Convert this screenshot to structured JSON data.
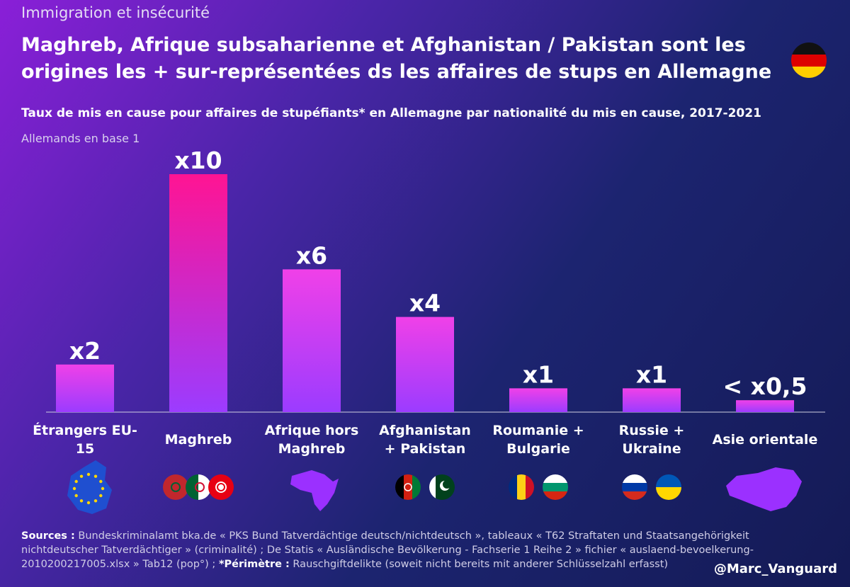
{
  "chart_data": {
    "type": "bar",
    "kicker": "Immigration et insécurité",
    "title": [
      "Maghreb, Afrique subsaharienne et Afghanistan / Pakistan sont les",
      "origines les + sur-représentées ds les affaires de stups en Allemagne"
    ],
    "subtitle": "Taux de mis en cause pour affaires de stupéfiants* en Allemagne par nationalité du mis en cause, 2017-2021",
    "unit_note": "Allemands en base 1",
    "categories": [
      "Étrangers EU-15",
      "Maghreb",
      "Afrique hors Maghreb",
      "Afghanistan + Pakistan",
      "Roumanie + Bulgarie",
      "Russie + Ukraine",
      "Asie orientale"
    ],
    "values": [
      2,
      10,
      6,
      4,
      1,
      1,
      0.5
    ],
    "value_labels": [
      "x2",
      "x10",
      "x6",
      "x4",
      "x1",
      "x1",
      "< x0,5"
    ],
    "color": "#f040e8",
    "highlight_color": "#ff1493",
    "sources_label": "Sources :",
    "sources_text": "Bundeskriminalamt bka.de « PKS Bund Tatverdächtige deutsch/nichtdeutsch », tableaux « T62 Straftaten und Staatsangehörigkeit nichtdeutscher Tatverdächtiger » (criminalité) ; De Statis « Ausländische Bevölkerung - Fachserie 1 Reihe 2 » fichier « auslaend-bevoelkerung-2010200217005.xlsx » Tab12 (pop°) ;",
    "perimeter_label": "*Périmètre :",
    "perimeter_text": "Rauschgiftdelikte (soweit nicht bereits mit anderer Schlüsselzahl erfasst)",
    "credit": "@Marc_Vanguard"
  }
}
